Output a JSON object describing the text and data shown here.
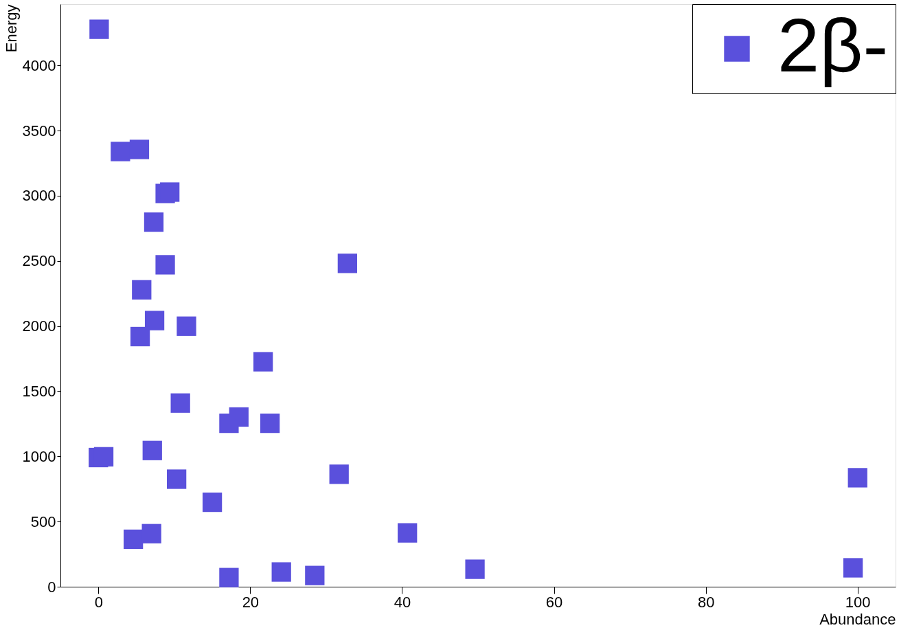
{
  "chart_data": {
    "type": "scatter",
    "xlabel": "Abundance",
    "ylabel": "Energy",
    "xlim": [
      -5,
      105
    ],
    "ylim": [
      0,
      4470
    ],
    "xticks": [
      0,
      20,
      40,
      60,
      80,
      100
    ],
    "yticks": [
      0,
      500,
      1000,
      1500,
      2000,
      2500,
      3000,
      3500,
      4000
    ],
    "grid": false,
    "legend": "top right",
    "marker": "square",
    "series": [
      {
        "name": "2β-",
        "color": "#5a50dc",
        "x": [
          0.1,
          2.9,
          5.4,
          8.8,
          9.4,
          7.3,
          8.8,
          5.7,
          7.4,
          5.5,
          11.6,
          21.7,
          10.8,
          17.2,
          18.5,
          22.6,
          32.8,
          7.1,
          0,
          0.7,
          10.3,
          31.7,
          15.0,
          4.6,
          7.0,
          40.7,
          17.2,
          24.1,
          28.5,
          49.6,
          100,
          99.4
        ],
        "values": [
          4277,
          3339,
          3355,
          3017,
          3028,
          2797,
          2470,
          2278,
          2042,
          1919,
          1999,
          1726,
          1409,
          1254,
          1302,
          1254,
          2481,
          1045,
          991,
          997,
          825,
          863,
          648,
          364,
          407,
          413,
          70,
          113,
          86,
          134,
          836,
          145
        ]
      }
    ]
  }
}
